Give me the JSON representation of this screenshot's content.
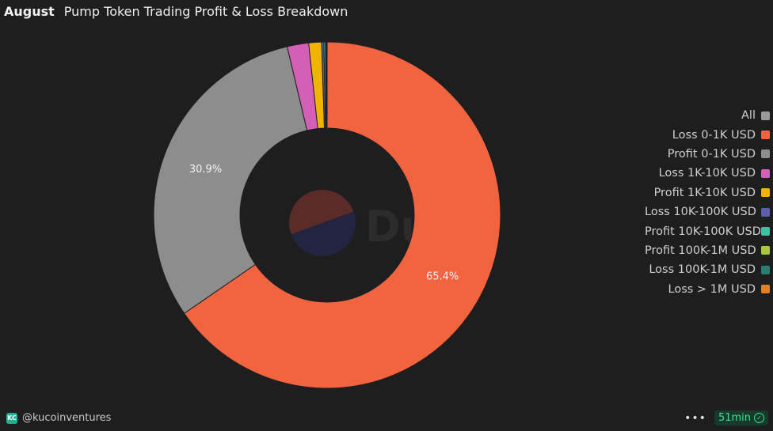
{
  "header": {
    "tag": "August",
    "title": "Pump Token Trading Profit & Loss Breakdown"
  },
  "watermark": "Dune",
  "chart_data": {
    "type": "pie",
    "donut": true,
    "categories": [
      "Loss 0-1K USD",
      "Profit 0-1K USD",
      "Loss 1K-10K USD",
      "Profit 1K-10K USD",
      "Loss 10K-100K USD",
      "Profit 10K-100K USD",
      "Profit 100K-1M USD",
      "Loss 100K-1M USD",
      "Loss > 1M USD"
    ],
    "values": [
      65.4,
      30.9,
      2.0,
      1.2,
      0.2,
      0.15,
      0.05,
      0.06,
      0.04
    ],
    "colors": [
      "#f26440",
      "#8d8d8d",
      "#d35fb7",
      "#f0b400",
      "#5a5fb0",
      "#3ec0a0",
      "#a6c83a",
      "#2a7d70",
      "#e67e22"
    ],
    "data_labels": [
      "65.4%",
      "30.9%",
      "",
      "",
      "",
      "",
      "",
      "",
      ""
    ],
    "legend": {
      "position": "right",
      "items": [
        {
          "label": "All",
          "color": "#9a9a9a"
        },
        {
          "label": "Loss 0-1K USD",
          "color": "#f26440"
        },
        {
          "label": "Profit 0-1K USD",
          "color": "#8d8d8d"
        },
        {
          "label": "Loss 1K-10K USD",
          "color": "#d35fb7"
        },
        {
          "label": "Profit 1K-10K USD",
          "color": "#f0b400"
        },
        {
          "label": "Loss 10K-100K USD",
          "color": "#5a5fb0"
        },
        {
          "label": "Profit 10K-100K USD",
          "color": "#3ec0a0"
        },
        {
          "label": "Profit 100K-1M USD",
          "color": "#a6c83a"
        },
        {
          "label": "Loss 100K-1M USD",
          "color": "#2a7d70"
        },
        {
          "label": "Loss > 1M USD",
          "color": "#e67e22"
        }
      ]
    }
  },
  "footer": {
    "handle": "@kucoinventures",
    "logo_icon": "kucoin-logo-icon",
    "more_icon": "more-dots-icon",
    "refresh_label": "51min",
    "status_icon": "check-circle-icon",
    "status_color": "#3ee08f"
  }
}
